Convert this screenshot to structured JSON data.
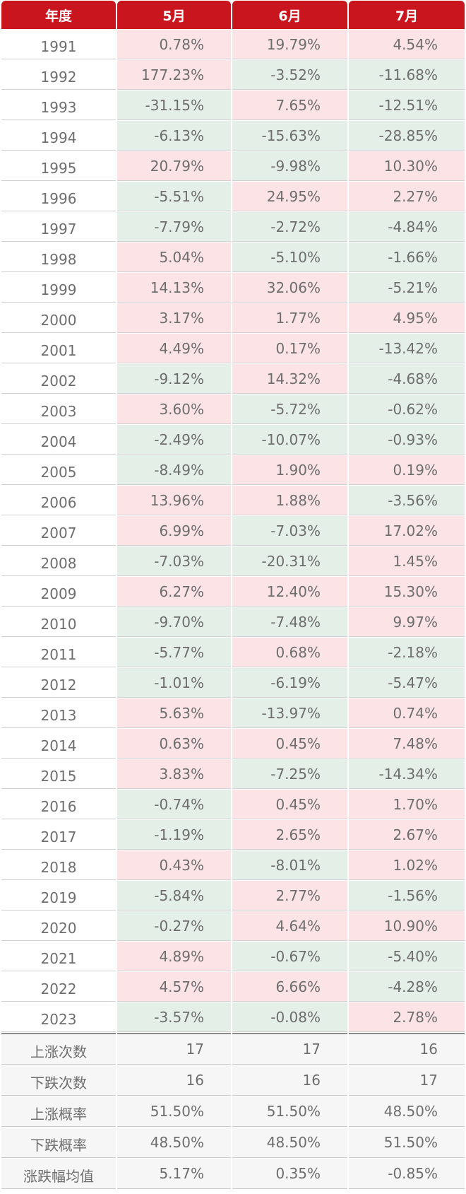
{
  "table": {
    "headers": [
      "年度",
      "5月",
      "6月",
      "7月"
    ],
    "rows": [
      {
        "year": "1991",
        "values": [
          "0.78%",
          "19.79%",
          "4.54%"
        ]
      },
      {
        "year": "1992",
        "values": [
          "177.23%",
          "-3.52%",
          "-11.68%"
        ]
      },
      {
        "year": "1993",
        "values": [
          "-31.15%",
          "7.65%",
          "-12.51%"
        ]
      },
      {
        "year": "1994",
        "values": [
          "-6.13%",
          "-15.63%",
          "-28.85%"
        ]
      },
      {
        "year": "1995",
        "values": [
          "20.79%",
          "-9.98%",
          "10.30%"
        ]
      },
      {
        "year": "1996",
        "values": [
          "-5.51%",
          "24.95%",
          "2.27%"
        ]
      },
      {
        "year": "1997",
        "values": [
          "-7.79%",
          "-2.72%",
          "-4.84%"
        ]
      },
      {
        "year": "1998",
        "values": [
          "5.04%",
          "-5.10%",
          "-1.66%"
        ]
      },
      {
        "year": "1999",
        "values": [
          "14.13%",
          "32.06%",
          "-5.21%"
        ]
      },
      {
        "year": "2000",
        "values": [
          "3.17%",
          "1.77%",
          "4.95%"
        ]
      },
      {
        "year": "2001",
        "values": [
          "4.49%",
          "0.17%",
          "-13.42%"
        ]
      },
      {
        "year": "2002",
        "values": [
          "-9.12%",
          "14.32%",
          "-4.68%"
        ]
      },
      {
        "year": "2003",
        "values": [
          "3.60%",
          "-5.72%",
          "-0.62%"
        ]
      },
      {
        "year": "2004",
        "values": [
          "-2.49%",
          "-10.07%",
          "-0.93%"
        ]
      },
      {
        "year": "2005",
        "values": [
          "-8.49%",
          "1.90%",
          "0.19%"
        ]
      },
      {
        "year": "2006",
        "values": [
          "13.96%",
          "1.88%",
          "-3.56%"
        ]
      },
      {
        "year": "2007",
        "values": [
          "6.99%",
          "-7.03%",
          "17.02%"
        ]
      },
      {
        "year": "2008",
        "values": [
          "-7.03%",
          "-20.31%",
          "1.45%"
        ]
      },
      {
        "year": "2009",
        "values": [
          "6.27%",
          "12.40%",
          "15.30%"
        ]
      },
      {
        "year": "2010",
        "values": [
          "-9.70%",
          "-7.48%",
          "9.97%"
        ]
      },
      {
        "year": "2011",
        "values": [
          "-5.77%",
          "0.68%",
          "-2.18%"
        ]
      },
      {
        "year": "2012",
        "values": [
          "-1.01%",
          "-6.19%",
          "-5.47%"
        ]
      },
      {
        "year": "2013",
        "values": [
          "5.63%",
          "-13.97%",
          "0.74%"
        ]
      },
      {
        "year": "2014",
        "values": [
          "0.63%",
          "0.45%",
          "7.48%"
        ]
      },
      {
        "year": "2015",
        "values": [
          "3.83%",
          "-7.25%",
          "-14.34%"
        ]
      },
      {
        "year": "2016",
        "values": [
          "-0.74%",
          "0.45%",
          "1.70%"
        ]
      },
      {
        "year": "2017",
        "values": [
          "-1.19%",
          "2.65%",
          "2.67%"
        ]
      },
      {
        "year": "2018",
        "values": [
          "0.43%",
          "-8.01%",
          "1.02%"
        ]
      },
      {
        "year": "2019",
        "values": [
          "-5.84%",
          "2.77%",
          "-1.56%"
        ]
      },
      {
        "year": "2020",
        "values": [
          "-0.27%",
          "4.64%",
          "10.90%"
        ]
      },
      {
        "year": "2021",
        "values": [
          "4.89%",
          "-0.67%",
          "-5.40%"
        ]
      },
      {
        "year": "2022",
        "values": [
          "4.57%",
          "6.66%",
          "-4.28%"
        ]
      },
      {
        "year": "2023",
        "values": [
          "-3.57%",
          "-0.08%",
          "2.78%"
        ]
      }
    ],
    "summary": [
      {
        "label": "上涨次数",
        "values": [
          "17",
          "17",
          "16"
        ]
      },
      {
        "label": "下跌次数",
        "values": [
          "16",
          "16",
          "17"
        ]
      },
      {
        "label": "上涨概率",
        "values": [
          "51.50%",
          "51.50%",
          "48.50%"
        ]
      },
      {
        "label": "下跌概率",
        "values": [
          "48.50%",
          "48.50%",
          "51.50%"
        ]
      },
      {
        "label": "涨跌幅均值",
        "values": [
          "5.17%",
          "0.35%",
          "-0.85%"
        ]
      }
    ]
  },
  "colors": {
    "header_bg": "#c9151e",
    "up_bg": "#fbe3e6",
    "down_bg": "#e4efe8",
    "summary_bg": "#f6f6f6",
    "text": "#6e6e6e"
  }
}
